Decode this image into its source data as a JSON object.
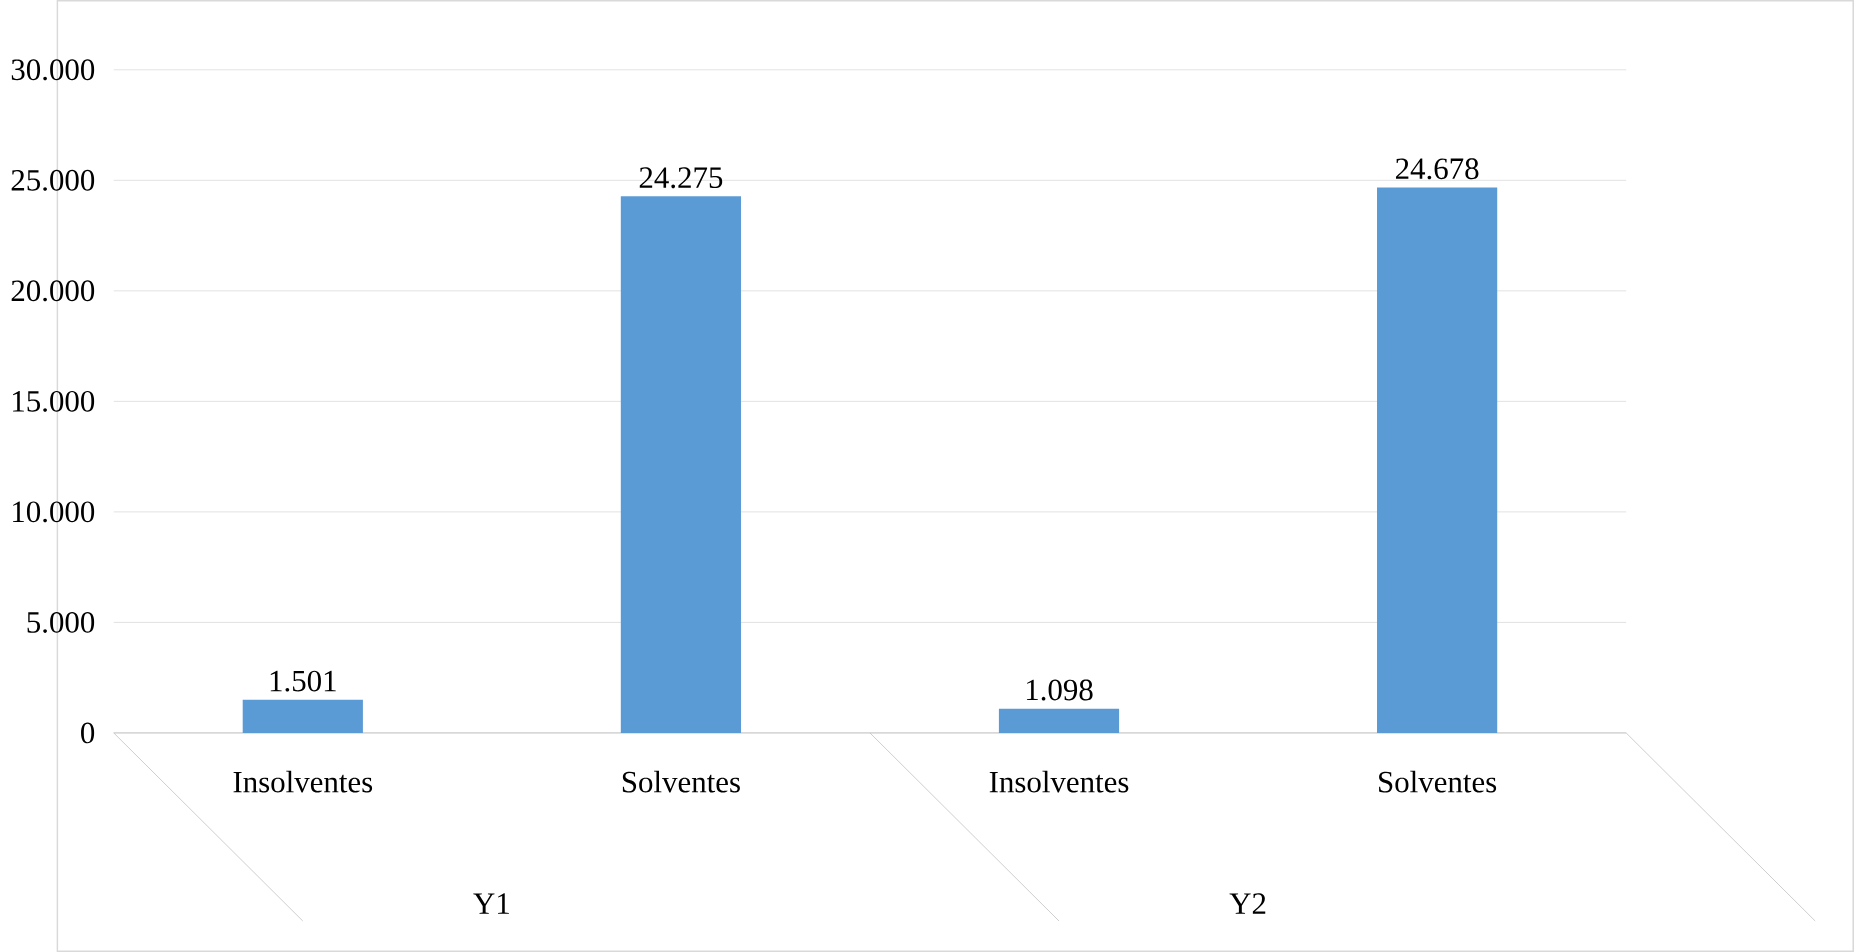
{
  "chart_data": {
    "type": "bar",
    "categories": [
      "Insolventes",
      "Solventes",
      "Insolventes",
      "Solventes"
    ],
    "values": [
      1501,
      24275,
      1098,
      24678
    ],
    "value_labels": [
      "1.501",
      "24.275",
      "1.098",
      "24.678"
    ],
    "color": "#5b9bd5",
    "ylim": [
      0,
      30000
    ],
    "yticks": [
      {
        "value": 0,
        "label": "0"
      },
      {
        "value": 5000,
        "label": "5.000"
      },
      {
        "value": 10000,
        "label": "10.000"
      },
      {
        "value": 15000,
        "label": "15.000"
      },
      {
        "value": 20000,
        "label": "20.000"
      },
      {
        "value": 25000,
        "label": "25.000"
      },
      {
        "value": 30000,
        "label": "30.000"
      }
    ],
    "grid": "y",
    "annotations": [
      "Y1",
      "Y2"
    ]
  }
}
